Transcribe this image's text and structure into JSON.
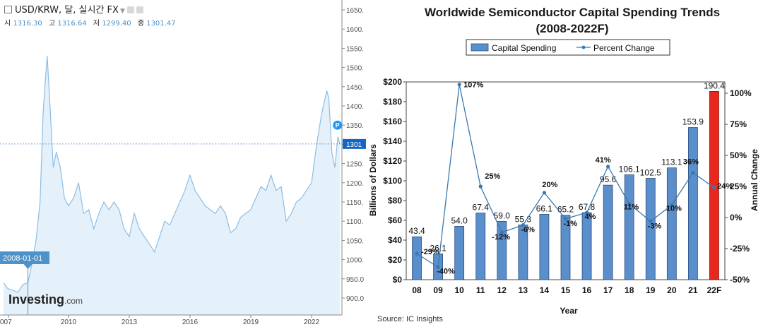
{
  "left": {
    "title": "USD/KRW, 달, 실시간 FX",
    "ohlc": [
      {
        "label": "시",
        "value": "1316.30"
      },
      {
        "label": "고",
        "value": "1316.64"
      },
      {
        "label": "저",
        "value": "1299.40"
      },
      {
        "label": "종",
        "value": "1301.47"
      }
    ],
    "current_price_label": "1301",
    "date_marker": "2008-01-01",
    "marker_badge": "P",
    "logo": {
      "main": "Investing",
      "suffix": ".com"
    },
    "colors": {
      "line": "#8fbde0",
      "fill": "#e4f1fb",
      "marker": "#4d93c9"
    }
  },
  "chart_data": [
    {
      "type": "area",
      "title": "",
      "xlabel": "",
      "ylabel": "",
      "x_tick_labels": [
        "007",
        "2010",
        "2013",
        "2016",
        "2019",
        "2022"
      ],
      "x_tick_years": [
        2007.05,
        2010,
        2013,
        2016,
        2019,
        2022
      ],
      "y_ticks": [
        "1650.",
        "1600.",
        "1550.",
        "1500.",
        "1450.",
        "1400.",
        "1350.",
        "1300.",
        "1250.",
        "1200.",
        "1150.",
        "1100.",
        "1050.",
        "1000.",
        "950.0",
        "900.0"
      ],
      "ylim": [
        880,
        1660
      ],
      "grid": false,
      "x": [
        2006.8,
        2007.0,
        2007.25,
        2007.5,
        2007.75,
        2008.0,
        2008.2,
        2008.4,
        2008.6,
        2008.75,
        2008.85,
        2008.95,
        2009.1,
        2009.25,
        2009.4,
        2009.6,
        2009.8,
        2010.0,
        2010.25,
        2010.5,
        2010.75,
        2011.0,
        2011.25,
        2011.5,
        2011.75,
        2012.0,
        2012.25,
        2012.5,
        2012.75,
        2013.0,
        2013.25,
        2013.5,
        2013.75,
        2014.0,
        2014.25,
        2014.5,
        2014.75,
        2015.0,
        2015.25,
        2015.5,
        2015.75,
        2016.0,
        2016.25,
        2016.5,
        2016.75,
        2017.0,
        2017.25,
        2017.5,
        2017.75,
        2018.0,
        2018.25,
        2018.5,
        2018.75,
        2019.0,
        2019.25,
        2019.5,
        2019.75,
        2020.0,
        2020.25,
        2020.5,
        2020.75,
        2021.0,
        2021.25,
        2021.5,
        2021.75,
        2022.0,
        2022.25,
        2022.5,
        2022.75,
        2022.85,
        2023.0,
        2023.15,
        2023.3,
        2023.4
      ],
      "values": [
        940,
        925,
        920,
        915,
        935,
        940,
        990,
        1050,
        1150,
        1380,
        1460,
        1530,
        1390,
        1240,
        1280,
        1240,
        1160,
        1140,
        1160,
        1200,
        1120,
        1130,
        1080,
        1120,
        1150,
        1130,
        1150,
        1130,
        1080,
        1060,
        1120,
        1080,
        1060,
        1040,
        1020,
        1060,
        1100,
        1090,
        1120,
        1150,
        1180,
        1220,
        1180,
        1160,
        1140,
        1130,
        1120,
        1140,
        1120,
        1070,
        1080,
        1110,
        1120,
        1130,
        1160,
        1190,
        1180,
        1220,
        1180,
        1190,
        1100,
        1120,
        1150,
        1160,
        1180,
        1200,
        1300,
        1380,
        1440,
        1420,
        1280,
        1240,
        1320,
        1301
      ],
      "current_price": 1301,
      "date_marker_year": 2008.0
    },
    {
      "type": "bar",
      "title": "Worldwide Semiconductor Capital Spending Trends",
      "subtitle": "(2008-2022F)",
      "xlabel": "Year",
      "ylabel": "Billions of Dollars",
      "y2label": "Annual Change",
      "categories": [
        "08",
        "09",
        "10",
        "11",
        "12",
        "13",
        "14",
        "15",
        "16",
        "17",
        "18",
        "19",
        "20",
        "21",
        "22F"
      ],
      "legend": {
        "position": "top",
        "items": [
          "Capital Spending",
          "Percent Change"
        ]
      },
      "y_tick_labels": [
        "$0",
        "$20",
        "$40",
        "$60",
        "$80",
        "$100",
        "$120",
        "$140",
        "$160",
        "$180",
        "$200"
      ],
      "ylim": [
        0,
        200
      ],
      "y2_tick_labels": [
        "-50%",
        "-25%",
        "0%",
        "25%",
        "50%",
        "75%",
        "100%"
      ],
      "y2lim": [
        -50,
        110
      ],
      "series": [
        {
          "name": "Capital Spending",
          "kind": "bar",
          "values": [
            43.4,
            26.1,
            54.0,
            67.4,
            59.0,
            55.3,
            66.1,
            65.2,
            67.8,
            95.6,
            106.1,
            102.5,
            113.1,
            153.9,
            190.4
          ],
          "labels": [
            "43.4",
            "26.1",
            "54.0",
            "67.4",
            "59.0",
            "55.3",
            "66.1",
            "65.2",
            "67.8",
            "95.6",
            "106.1",
            "102.5",
            "113.1",
            "153.9",
            "190.4"
          ],
          "color": "#5b8fcc",
          "forecast_color": "#e8281e"
        },
        {
          "name": "Percent Change",
          "kind": "line",
          "axis": "right",
          "values": [
            -29,
            -40,
            107,
            25,
            -12,
            -6,
            20,
            -1,
            4,
            41,
            11,
            -3,
            10,
            36,
            24
          ],
          "labels": [
            "-29%",
            "-40%",
            "107%",
            "25%",
            "-12%",
            "-6%",
            "20%",
            "-1%",
            "4%",
            "41%",
            "11%",
            "-3%",
            "10%",
            "36%",
            "24%"
          ],
          "color": "#3a78b0"
        }
      ],
      "source": "Source: IC Insights"
    }
  ]
}
